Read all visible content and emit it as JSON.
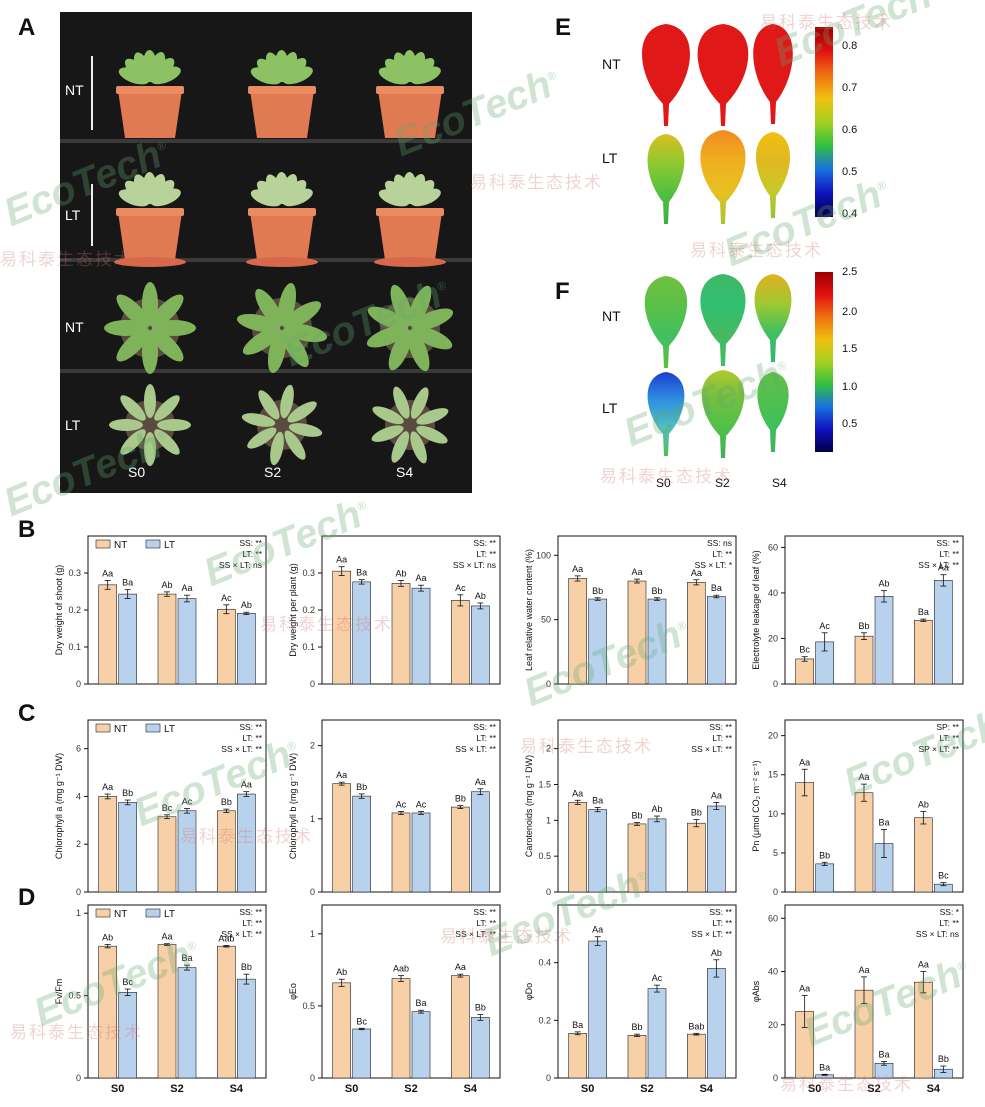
{
  "panel_labels": [
    "A",
    "B",
    "C",
    "D",
    "E",
    "F"
  ],
  "photo": {
    "rows": [
      "NT",
      "LT",
      "NT",
      "LT"
    ],
    "columns": [
      "S0",
      "S2",
      "S4"
    ]
  },
  "heatmaps": {
    "E": {
      "rows": [
        "NT",
        "LT"
      ],
      "colorbar_ticks": [
        "0.8",
        "0.7",
        "0.6",
        "0.5",
        "0.4"
      ],
      "range": [
        0.4,
        0.85
      ],
      "colors": [
        "#000044",
        "#1010c0",
        "#1a70e0",
        "#30c040",
        "#a6d020",
        "#f0c010",
        "#f07010",
        "#e01010",
        "#a00000"
      ]
    },
    "F": {
      "rows": [
        "NT",
        "LT"
      ],
      "colorbar_ticks": [
        "2.5",
        "2.0",
        "1.5",
        "1.0",
        "0.5"
      ],
      "range": [
        0.1,
        2.5
      ],
      "columns": [
        "S0",
        "S2",
        "S4"
      ],
      "colors": [
        "#000044",
        "#1010c0",
        "#1a70e0",
        "#30c040",
        "#a6d020",
        "#f0c010",
        "#f07010",
        "#e01010",
        "#a00000"
      ]
    }
  },
  "legend": {
    "nt": "NT",
    "lt": "LT"
  },
  "colors": {
    "nt": "#f7d0a8",
    "lt": "#b8d2ee"
  },
  "chart_data": [
    {
      "id": "B1",
      "type": "bar",
      "categories": [
        "S0",
        "S2",
        "S4"
      ],
      "ylabel": "Dry weight of shoot (g)",
      "ylim": [
        0,
        0.4
      ],
      "yticks": [
        0,
        0.1,
        0.2,
        0.3
      ],
      "series": [
        {
          "name": "NT",
          "values": [
            0.268,
            0.243,
            0.202
          ],
          "err": [
            0.012,
            0.006,
            0.012
          ],
          "labels": [
            "Aa",
            "Ab",
            "Ac"
          ]
        },
        {
          "name": "LT",
          "values": [
            0.243,
            0.231,
            0.191
          ],
          "err": [
            0.012,
            0.009,
            0.003
          ],
          "labels": [
            "Ba",
            "Aa",
            "Ab"
          ]
        }
      ],
      "stats": [
        "SS: **",
        "LT: **",
        "SS × LT: ns"
      ],
      "legend": true,
      "xlabels": false
    },
    {
      "id": "B2",
      "type": "bar",
      "categories": [
        "S0",
        "S2",
        "S4"
      ],
      "ylabel": "Dry weight per plant (g)",
      "ylim": [
        0,
        0.4
      ],
      "yticks": [
        0,
        0.1,
        0.2,
        0.3
      ],
      "series": [
        {
          "name": "NT",
          "values": [
            0.305,
            0.272,
            0.226
          ],
          "err": [
            0.012,
            0.008,
            0.015
          ],
          "labels": [
            "Aa",
            "Ab",
            "Ac"
          ]
        },
        {
          "name": "LT",
          "values": [
            0.276,
            0.259,
            0.211
          ],
          "err": [
            0.006,
            0.008,
            0.008
          ],
          "labels": [
            "Ba",
            "Aa",
            "Ab"
          ]
        }
      ],
      "stats": [
        "SS: **",
        "LT: **",
        "SS × LT: ns"
      ],
      "legend": false,
      "xlabels": false
    },
    {
      "id": "B3",
      "type": "bar",
      "categories": [
        "S0",
        "S2",
        "S4"
      ],
      "ylabel": "Leaf relative water content (%)",
      "ylim": [
        0,
        115
      ],
      "yticks": [
        0,
        50,
        100
      ],
      "series": [
        {
          "name": "NT",
          "values": [
            82,
            80,
            79
          ],
          "err": [
            2,
            1.5,
            2
          ],
          "labels": [
            "Aa",
            "Aa",
            "Aa"
          ]
        },
        {
          "name": "LT",
          "values": [
            66,
            66,
            68
          ],
          "err": [
            1,
            1,
            1
          ],
          "labels": [
            "Bb",
            "Bb",
            "Ba"
          ]
        }
      ],
      "stats": [
        "SS: ns",
        "LT: **",
        "SS × LT: *"
      ],
      "legend": false,
      "xlabels": false
    },
    {
      "id": "B4",
      "type": "bar",
      "categories": [
        "S0",
        "S2",
        "S4"
      ],
      "ylabel": "Electrolyte leakage of leaf (%)",
      "ylim": [
        0,
        65
      ],
      "yticks": [
        0,
        20,
        40,
        60
      ],
      "series": [
        {
          "name": "NT",
          "values": [
            11,
            21,
            28
          ],
          "err": [
            1,
            1.5,
            0.5
          ],
          "labels": [
            "Bc",
            "Bb",
            "Ba"
          ]
        },
        {
          "name": "LT",
          "values": [
            18.5,
            38.5,
            45.5
          ],
          "err": [
            4,
            2.5,
            2.5
          ],
          "labels": [
            "Ac",
            "Ab",
            "Aa"
          ]
        }
      ],
      "stats": [
        "SS: **",
        "LT: **",
        "SS × LT: **"
      ],
      "legend": false,
      "xlabels": false
    },
    {
      "id": "C1",
      "type": "bar",
      "categories": [
        "S0",
        "S2",
        "S4"
      ],
      "ylabel": "Chlorophyll a (mg g⁻¹ DW)",
      "ylim": [
        0,
        7.2
      ],
      "yticks": [
        0,
        2,
        4,
        6
      ],
      "series": [
        {
          "name": "NT",
          "values": [
            4.0,
            3.15,
            3.4
          ],
          "err": [
            0.1,
            0.08,
            0.07
          ],
          "labels": [
            "Aa",
            "Bc",
            "Bb"
          ]
        },
        {
          "name": "LT",
          "values": [
            3.75,
            3.4,
            4.1
          ],
          "err": [
            0.1,
            0.1,
            0.1
          ],
          "labels": [
            "Bb",
            "Ac",
            "Aa"
          ]
        }
      ],
      "stats": [
        "SS: **",
        "LT: **",
        "SS × LT: **"
      ],
      "legend": true,
      "xlabels": false
    },
    {
      "id": "C2",
      "type": "bar",
      "categories": [
        "S0",
        "S2",
        "S4"
      ],
      "ylabel": "Chlorophyll b (mg g⁻¹ DW)",
      "ylim": [
        0,
        2.35
      ],
      "yticks": [
        0,
        1,
        2
      ],
      "series": [
        {
          "name": "NT",
          "values": [
            1.48,
            1.08,
            1.16
          ],
          "err": [
            0.02,
            0.02,
            0.02
          ],
          "labels": [
            "Aa",
            "Ac",
            "Bb"
          ]
        },
        {
          "name": "LT",
          "values": [
            1.31,
            1.08,
            1.37
          ],
          "err": [
            0.03,
            0.02,
            0.04
          ],
          "labels": [
            "Bb",
            "Ac",
            "Aa"
          ]
        }
      ],
      "stats": [
        "SS: **",
        "LT: **",
        "SS × LT: **"
      ],
      "legend": false,
      "xlabels": false
    },
    {
      "id": "C3",
      "type": "bar",
      "categories": [
        "S0",
        "S2",
        "S4"
      ],
      "ylabel": "Carotenoids (mg g⁻¹ DW)",
      "ylim": [
        0,
        2.4
      ],
      "yticks": [
        0,
        0.5,
        1.0,
        1.5,
        2.0
      ],
      "series": [
        {
          "name": "NT",
          "values": [
            1.25,
            0.95,
            0.96
          ],
          "err": [
            0.03,
            0.02,
            0.05
          ],
          "labels": [
            "Aa",
            "Bb",
            "Bb"
          ]
        },
        {
          "name": "LT",
          "values": [
            1.15,
            1.02,
            1.2
          ],
          "err": [
            0.03,
            0.04,
            0.05
          ],
          "labels": [
            "Ba",
            "Ab",
            "Aa"
          ]
        }
      ],
      "stats": [
        "SS: **",
        "LT: **",
        "SS × LT: **"
      ],
      "legend": false,
      "xlabels": false
    },
    {
      "id": "C4",
      "type": "bar",
      "categories": [
        "S0",
        "S2",
        "S4"
      ],
      "ylabel": "Pn (μmol CO₂ m⁻² s⁻¹)",
      "ylim": [
        0,
        22
      ],
      "yticks": [
        0,
        5,
        10,
        15,
        20
      ],
      "series": [
        {
          "name": "NT",
          "values": [
            14,
            12.7,
            9.5
          ],
          "err": [
            1.7,
            1.1,
            0.8
          ],
          "labels": [
            "Aa",
            "Aa",
            "Ab"
          ]
        },
        {
          "name": "LT",
          "values": [
            3.6,
            6.2,
            1.0
          ],
          "err": [
            0.2,
            1.8,
            0.2
          ],
          "labels": [
            "Bb",
            "Ba",
            "Bc"
          ]
        }
      ],
      "stats": [
        "SP: **",
        "LT: **",
        "SP × LT: **"
      ],
      "legend": false,
      "xlabels": false
    },
    {
      "id": "D1",
      "type": "bar",
      "categories": [
        "S0",
        "S2",
        "S4"
      ],
      "ylabel": "Fv/Fm",
      "ylim": [
        0,
        1.05
      ],
      "yticks": [
        0.0,
        0.5,
        1.0
      ],
      "series": [
        {
          "name": "NT",
          "values": [
            0.8,
            0.81,
            0.8
          ],
          "err": [
            0.01,
            0.005,
            0.005
          ],
          "labels": [
            "Ab",
            "Aa",
            "Aab"
          ]
        },
        {
          "name": "LT",
          "values": [
            0.52,
            0.67,
            0.6
          ],
          "err": [
            0.02,
            0.015,
            0.03
          ],
          "labels": [
            "Bc",
            "Ba",
            "Bb"
          ]
        }
      ],
      "stats": [
        "SS: **",
        "LT: **",
        "SS × LT: **"
      ],
      "legend": true,
      "xlabels": true
    },
    {
      "id": "D2",
      "type": "bar",
      "categories": [
        "S0",
        "S2",
        "S4"
      ],
      "ylabel": "φEo",
      "ylim": [
        0,
        1.2
      ],
      "yticks": [
        0.0,
        0.5,
        1.0
      ],
      "series": [
        {
          "name": "NT",
          "values": [
            0.66,
            0.69,
            0.71
          ],
          "err": [
            0.025,
            0.02,
            0.01
          ],
          "labels": [
            "Ab",
            "Aab",
            "Aa"
          ]
        },
        {
          "name": "LT",
          "values": [
            0.34,
            0.46,
            0.42
          ],
          "err": [
            0.005,
            0.01,
            0.02
          ],
          "labels": [
            "Bc",
            "Ba",
            "Bb"
          ]
        }
      ],
      "stats": [
        "SS: **",
        "LT: **",
        "SS × LT: **"
      ],
      "legend": false,
      "xlabels": true
    },
    {
      "id": "D3",
      "type": "bar",
      "categories": [
        "S0",
        "S2",
        "S4"
      ],
      "ylabel": "φDo",
      "ylim": [
        0,
        0.6
      ],
      "yticks": [
        0.0,
        0.2,
        0.4
      ],
      "series": [
        {
          "name": "NT",
          "values": [
            0.155,
            0.148,
            0.152
          ],
          "err": [
            0.005,
            0.004,
            0.003
          ],
          "labels": [
            "Ba",
            "Bb",
            "Bab"
          ]
        },
        {
          "name": "LT",
          "values": [
            0.475,
            0.31,
            0.38
          ],
          "err": [
            0.015,
            0.012,
            0.03
          ],
          "labels": [
            "Aa",
            "Ac",
            "Ab"
          ]
        }
      ],
      "stats": [
        "SS: **",
        "LT: **",
        "SS × LT: **"
      ],
      "legend": false,
      "xlabels": true
    },
    {
      "id": "D4",
      "type": "bar",
      "categories": [
        "S0",
        "S2",
        "S4"
      ],
      "ylabel": "φAbs",
      "ylim": [
        0,
        65
      ],
      "yticks": [
        0,
        20,
        40,
        60
      ],
      "series": [
        {
          "name": "NT",
          "values": [
            25,
            33,
            36
          ],
          "err": [
            6,
            5,
            4
          ],
          "labels": [
            "Aa",
            "Aa",
            "Aa"
          ]
        },
        {
          "name": "LT",
          "values": [
            1.2,
            5.5,
            3.3
          ],
          "err": [
            0.2,
            0.7,
            1.2
          ],
          "labels": [
            "Ba",
            "Ba",
            "Bb"
          ]
        }
      ],
      "stats": [
        "SS: *",
        "LT: **",
        "SS × LT: ns"
      ],
      "legend": false,
      "xlabels": true
    }
  ],
  "watermark": {
    "brand": "EcoTech",
    "reg": "®",
    "cn": "易科泰生态技术"
  }
}
